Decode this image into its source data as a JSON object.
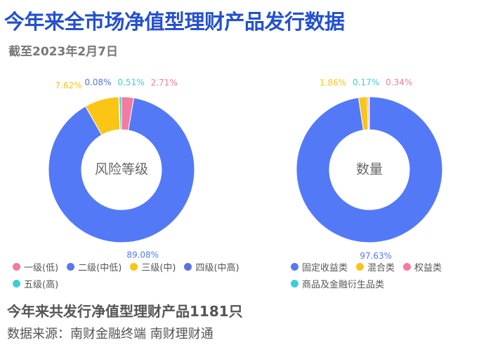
{
  "header": {
    "title": "今年来全市场净值型理财产品发行数据",
    "subtitle": "截至2023年2月7日"
  },
  "chart_data": [
    {
      "type": "pie",
      "center_label": "风险等级",
      "categories": [
        "一级(低)",
        "二级(中低)",
        "三级(中)",
        "四级(中高)",
        "五级(高)"
      ],
      "values": [
        2.71,
        89.08,
        7.62,
        0.08,
        0.51
      ],
      "value_labels": [
        "2.71%",
        "89.08%",
        "7.62%",
        "0.08%",
        "0.51%"
      ],
      "colors": [
        "#f27ba0",
        "#5479f7",
        "#fac515",
        "#5b73e0",
        "#3dcdd6"
      ]
    },
    {
      "type": "pie",
      "center_label": "数量",
      "categories": [
        "固定收益类",
        "混合类",
        "权益类",
        "商品及金融衍生品类"
      ],
      "values": [
        97.63,
        1.86,
        0.34,
        0.17
      ],
      "value_labels": [
        "97.63%",
        "1.86%",
        "0.34%",
        "0.17%"
      ],
      "colors": [
        "#5479f7",
        "#fac515",
        "#f27ba0",
        "#3dcdd6"
      ]
    }
  ],
  "footer": {
    "summary": "今年来共发行净值型理财产品1181只",
    "source": "数据来源：南财金融终端 南财理财通"
  }
}
